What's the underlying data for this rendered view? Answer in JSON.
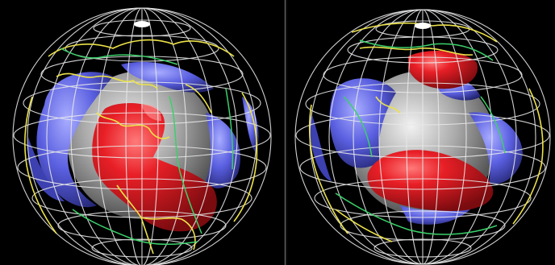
{
  "figure": {
    "panels": [
      {
        "id": "left",
        "subject": "mantle-structure-globe",
        "visible_regions": [
          "north-america",
          "south-america",
          "atlantic-ocean"
        ],
        "features": [
          "red-anomaly",
          "blue-anomalies",
          "core-sphere",
          "latitude-longitude-grid",
          "coastlines",
          "plate-boundaries"
        ]
      },
      {
        "id": "right",
        "subject": "mantle-structure-globe",
        "visible_regions": [
          "africa",
          "europe",
          "indian-ocean"
        ],
        "features": [
          "red-anomaly",
          "blue-anomalies",
          "core-sphere",
          "latitude-longitude-grid",
          "coastlines",
          "plate-boundaries"
        ]
      }
    ],
    "colors": {
      "background": "#000000",
      "grid": "#e8e8e8",
      "coastline": "#ece24a",
      "boundary": "#3bd06a",
      "hot_anomaly": "#e81f26",
      "cold_anomaly": "#5a5fe0",
      "core": "#9a9a9a"
    }
  }
}
